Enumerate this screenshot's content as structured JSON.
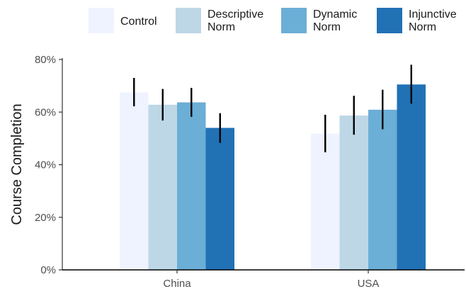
{
  "chart_data": {
    "type": "bar",
    "categories": [
      "China",
      "USA"
    ],
    "ylabel": "Course Completion",
    "xlabel": "",
    "ylim": [
      0,
      80
    ],
    "y_ticks": [
      "0%",
      "20%",
      "40%",
      "60%",
      "80%"
    ],
    "y_tick_values": [
      0,
      20,
      40,
      60,
      80
    ],
    "grid": false,
    "legend_position": "top",
    "series": [
      {
        "name": "Control",
        "lines": [
          "Control"
        ],
        "color": "#eff3ff",
        "values": [
          67.5,
          51.8
        ],
        "err_low": [
          62.2,
          44.7
        ],
        "err_high": [
          73.0,
          59.0
        ]
      },
      {
        "name": "Descriptive Norm",
        "lines": [
          "Descriptive",
          "Norm"
        ],
        "color": "#bdd7e7",
        "values": [
          62.8,
          58.7
        ],
        "err_low": [
          56.8,
          51.4
        ],
        "err_high": [
          68.8,
          66.2
        ]
      },
      {
        "name": "Dynamic Norm",
        "lines": [
          "Dynamic",
          "Norm"
        ],
        "color": "#6baed6",
        "values": [
          63.7,
          60.9
        ],
        "err_low": [
          58.2,
          53.5
        ],
        "err_high": [
          69.2,
          68.5
        ]
      },
      {
        "name": "Injunctive Norm",
        "lines": [
          "Injunctive",
          "Norm"
        ],
        "color": "#2171b5",
        "values": [
          54.0,
          70.5
        ],
        "err_low": [
          48.3,
          63.2
        ],
        "err_high": [
          59.6,
          78.0
        ]
      }
    ]
  }
}
